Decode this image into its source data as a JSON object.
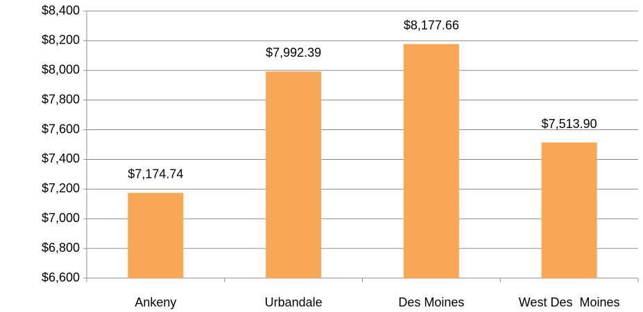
{
  "chart_data": {
    "type": "bar",
    "categories": [
      "Ankeny",
      "Urbandale",
      "Des Moines",
      "West Des  Moines"
    ],
    "values": [
      7174.74,
      7992.39,
      8177.66,
      7513.9
    ],
    "value_labels": [
      "$7,174.74",
      "$7,992.39",
      "$8,177.66",
      "$7,513.90"
    ],
    "color": "#f8a756",
    "ylim": [
      6600,
      8400
    ],
    "yticks": [
      {
        "value": 6600,
        "label": "$6,600"
      },
      {
        "value": 6800,
        "label": "$6,800"
      },
      {
        "value": 7000,
        "label": "$7,000"
      },
      {
        "value": 7200,
        "label": "$7,200"
      },
      {
        "value": 7400,
        "label": "$7,400"
      },
      {
        "value": 7600,
        "label": "$7,600"
      },
      {
        "value": 7800,
        "label": "$7,800"
      },
      {
        "value": 8000,
        "label": "$8,000"
      },
      {
        "value": 8200,
        "label": "$8,200"
      },
      {
        "value": 8400,
        "label": "$8,400"
      }
    ],
    "grid": true
  }
}
